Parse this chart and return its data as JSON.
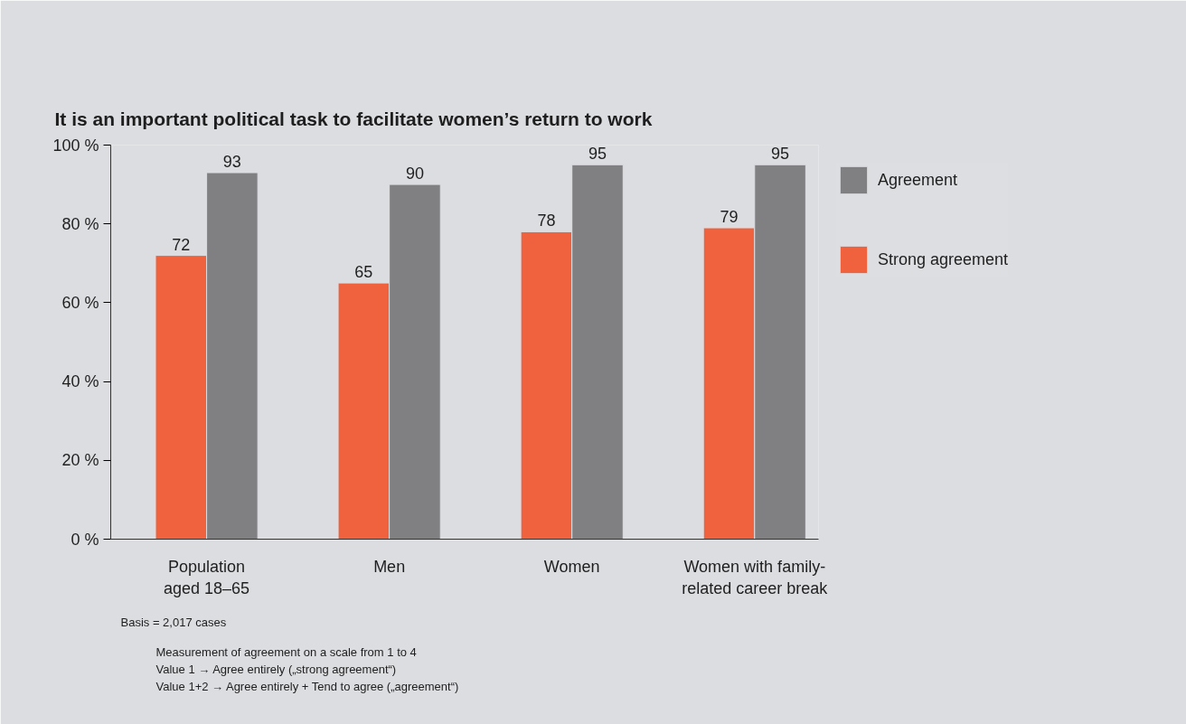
{
  "chart_data": {
    "type": "bar",
    "title": "It is an important political task to facilitate women’s return to work",
    "categories": [
      "Population\naged 18–65",
      "Men",
      "Women",
      "Women with family-\nrelated career break"
    ],
    "series": [
      {
        "name": "Strong agreement",
        "color": "#f0623e",
        "values": [
          72,
          65,
          78,
          79
        ]
      },
      {
        "name": "Agreement",
        "color": "#808083",
        "values": [
          93,
          90,
          95,
          95
        ]
      }
    ],
    "ylim": [
      0,
      100
    ],
    "yticks": [
      {
        "value": 0,
        "label": "0 %"
      },
      {
        "value": 20,
        "label": "20 %"
      },
      {
        "value": 40,
        "label": "40 %"
      },
      {
        "value": 60,
        "label": "60 %"
      },
      {
        "value": 80,
        "label": "80 %"
      },
      {
        "value": 100,
        "label": "100 %"
      }
    ],
    "data_labels": true,
    "grid": false,
    "legend": "top right",
    "annotations": [
      "Basis = 2,017 cases",
      "Measurement of agreement on a scale from 1 to 4",
      "Value 1 → Agree entirely („strong agreement“)",
      "Value 1+2 → Agree entirely + Tend to agree („agreement“)"
    ]
  }
}
